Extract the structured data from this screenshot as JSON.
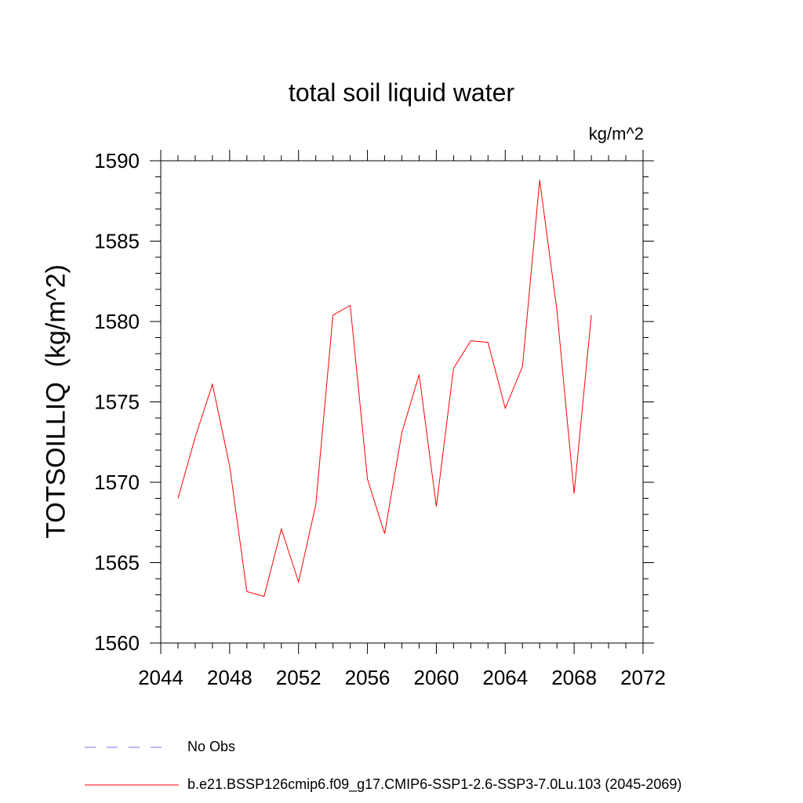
{
  "chart_data": {
    "type": "line",
    "title": "total soil liquid water",
    "units": "kg/m^2",
    "xlabel": "",
    "ylabel": "TOTSOILLIQ  (kg/m^2)",
    "xlim": [
      2044,
      2072
    ],
    "ylim": [
      1560,
      1590
    ],
    "xticks": [
      2044,
      2048,
      2052,
      2056,
      2060,
      2064,
      2068,
      2072
    ],
    "yticks": [
      1560,
      1565,
      1570,
      1575,
      1580,
      1585,
      1590
    ],
    "grid": false,
    "legend_position": "bottom",
    "series": [
      {
        "name": "b.e21.BSSP126cmip6.f09_g17.CMIP6-SSP1-2.6-SSP3-7.0Lu.103 (2045-2069)",
        "color": "#ff0000",
        "style": "solid",
        "x": [
          2045,
          2046,
          2047,
          2048,
          2049,
          2050,
          2051,
          2052,
          2053,
          2054,
          2055,
          2056,
          2057,
          2058,
          2059,
          2060,
          2061,
          2062,
          2063,
          2064,
          2065,
          2066,
          2067,
          2068,
          2069
        ],
        "y": [
          1569.0,
          1572.8,
          1576.1,
          1571.0,
          1563.2,
          1562.9,
          1567.1,
          1563.8,
          1568.6,
          1580.4,
          1581.0,
          1570.2,
          1566.8,
          1573.1,
          1576.7,
          1568.5,
          1577.1,
          1578.8,
          1578.7,
          1574.6,
          1577.2,
          1588.8,
          1580.7,
          1569.3,
          1580.4
        ]
      }
    ],
    "legend": [
      {
        "label": "No Obs",
        "color": "#7b68ee",
        "style": "dashed"
      },
      {
        "label": "b.e21.BSSP126cmip6.f09_g17.CMIP6-SSP1-2.6-SSP3-7.0Lu.103 (2045-2069)",
        "color": "#ff0000",
        "style": "solid"
      }
    ]
  }
}
